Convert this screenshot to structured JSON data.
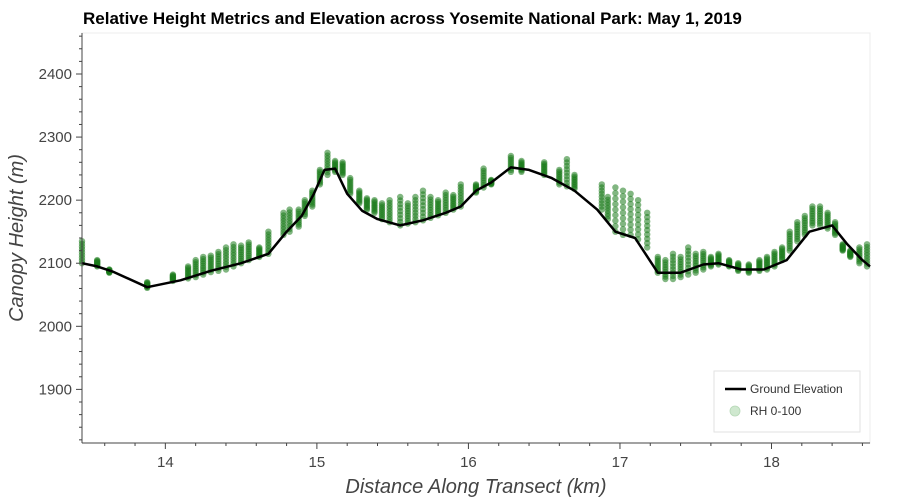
{
  "chart_data": {
    "type": "line",
    "title": "Relative Height Metrics and Elevation across Yosemite National Park: May 1, 2019",
    "xlabel": "Distance Along Transect (km)",
    "ylabel": "Canopy Height (m)",
    "xlim": [
      13.45,
      18.65
    ],
    "ylim": [
      1815,
      2465
    ],
    "xticks": [
      14,
      15,
      16,
      17,
      18
    ],
    "yticks": [
      1900,
      2000,
      2100,
      2200,
      2300,
      2400
    ],
    "x_tick_labels": [
      "14",
      "15",
      "16",
      "17",
      "18"
    ],
    "y_tick_labels": [
      "1900",
      "2000",
      "2100",
      "2200",
      "2300",
      "2400"
    ],
    "legend_position": "bottom-right",
    "grid": false,
    "colors": {
      "ground": "#000000",
      "rh": "#1a7a1a",
      "rh_legend": "#cfe8cf"
    },
    "series": [
      {
        "name": "Ground Elevation",
        "kind": "line",
        "x": [
          13.45,
          13.55,
          13.65,
          13.88,
          14.1,
          14.3,
          14.5,
          14.68,
          14.8,
          14.9,
          14.98,
          15.05,
          15.12,
          15.2,
          15.3,
          15.4,
          15.55,
          15.7,
          15.85,
          15.95,
          16.05,
          16.15,
          16.28,
          16.4,
          16.55,
          16.7,
          16.85,
          16.97,
          17.1,
          17.25,
          17.4,
          17.55,
          17.65,
          17.8,
          17.95,
          18.1,
          18.25,
          18.4,
          18.5,
          18.6,
          18.65
        ],
        "y": [
          2100,
          2095,
          2087,
          2062,
          2073,
          2088,
          2100,
          2115,
          2150,
          2175,
          2210,
          2248,
          2250,
          2210,
          2183,
          2170,
          2160,
          2168,
          2180,
          2190,
          2215,
          2228,
          2252,
          2248,
          2235,
          2215,
          2185,
          2150,
          2140,
          2085,
          2085,
          2098,
          2100,
          2090,
          2090,
          2105,
          2150,
          2160,
          2130,
          2105,
          2095
        ]
      },
      {
        "name": "RH 0-100",
        "kind": "scatter",
        "x": [
          13.45,
          13.55,
          13.63,
          13.88,
          14.05,
          14.15,
          14.2,
          14.25,
          14.3,
          14.35,
          14.4,
          14.45,
          14.5,
          14.55,
          14.62,
          14.68,
          14.78,
          14.82,
          14.88,
          14.92,
          14.97,
          15.02,
          15.07,
          15.12,
          15.17,
          15.22,
          15.28,
          15.33,
          15.38,
          15.43,
          15.48,
          15.55,
          15.6,
          15.65,
          15.7,
          15.75,
          15.8,
          15.85,
          15.9,
          15.95,
          16.05,
          16.1,
          16.15,
          16.28,
          16.35,
          16.5,
          16.6,
          16.65,
          16.7,
          16.88,
          16.92,
          16.97,
          17.02,
          17.07,
          17.12,
          17.18,
          17.25,
          17.3,
          17.35,
          17.4,
          17.45,
          17.5,
          17.55,
          17.6,
          17.65,
          17.72,
          17.78,
          17.85,
          17.92,
          17.97,
          18.02,
          18.07,
          18.12,
          18.17,
          18.22,
          18.27,
          18.32,
          18.37,
          18.42,
          18.47,
          18.52,
          18.58,
          18.63
        ],
        "y_low": [
          2100,
          2095,
          2085,
          2061,
          2072,
          2076,
          2078,
          2082,
          2086,
          2088,
          2090,
          2095,
          2100,
          2105,
          2110,
          2115,
          2145,
          2150,
          2158,
          2175,
          2190,
          2225,
          2240,
          2245,
          2240,
          2210,
          2195,
          2185,
          2180,
          2170,
          2165,
          2160,
          2163,
          2165,
          2168,
          2172,
          2176,
          2180,
          2185,
          2190,
          2212,
          2220,
          2225,
          2245,
          2245,
          2240,
          2225,
          2222,
          2218,
          2185,
          2170,
          2150,
          2145,
          2145,
          2138,
          2125,
          2085,
          2075,
          2075,
          2078,
          2082,
          2085,
          2090,
          2095,
          2098,
          2095,
          2088,
          2085,
          2088,
          2090,
          2095,
          2105,
          2120,
          2135,
          2145,
          2160,
          2160,
          2155,
          2145,
          2120,
          2110,
          2100,
          2095
        ],
        "y_high": [
          2135,
          2105,
          2090,
          2070,
          2082,
          2095,
          2105,
          2110,
          2112,
          2118,
          2125,
          2130,
          2128,
          2133,
          2125,
          2150,
          2180,
          2185,
          2185,
          2200,
          2215,
          2248,
          2275,
          2262,
          2260,
          2235,
          2215,
          2203,
          2200,
          2195,
          2200,
          2205,
          2195,
          2205,
          2215,
          2205,
          2200,
          2212,
          2208,
          2225,
          2225,
          2250,
          2232,
          2270,
          2262,
          2260,
          2248,
          2265,
          2240,
          2225,
          2205,
          2220,
          2215,
          2210,
          2200,
          2180,
          2110,
          2105,
          2115,
          2110,
          2125,
          2115,
          2118,
          2110,
          2115,
          2105,
          2100,
          2098,
          2105,
          2110,
          2118,
          2125,
          2150,
          2165,
          2175,
          2190,
          2190,
          2180,
          2165,
          2130,
          2120,
          2125,
          2130
        ]
      }
    ]
  }
}
